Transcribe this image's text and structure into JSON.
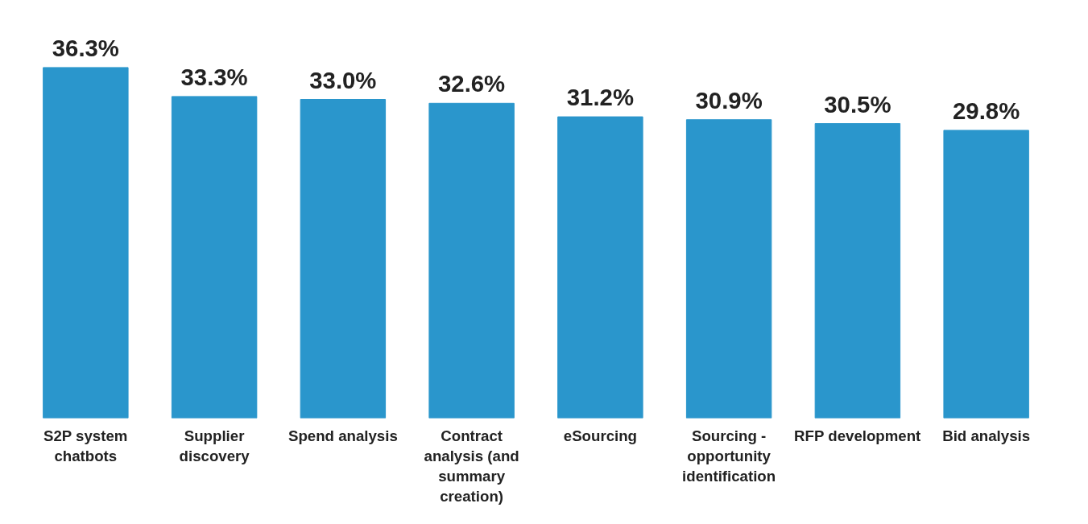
{
  "chart_data": {
    "type": "bar",
    "categories": [
      "S2P system chatbots",
      "Supplier discovery",
      "Spend analysis",
      "Contract analysis (and summary creation)",
      "eSourcing",
      "Sourcing - opportunity identification",
      "RFP development",
      "Bid analysis"
    ],
    "values": [
      36.3,
      33.3,
      33.0,
      32.6,
      31.2,
      30.9,
      30.5,
      29.8
    ],
    "value_labels": [
      "36.3%",
      "33.3%",
      "33.0%",
      "32.6%",
      "31.2%",
      "30.9%",
      "30.5%",
      "29.8%"
    ],
    "color": "#2a96cc",
    "tick_labels": "x",
    "grid": false
  }
}
